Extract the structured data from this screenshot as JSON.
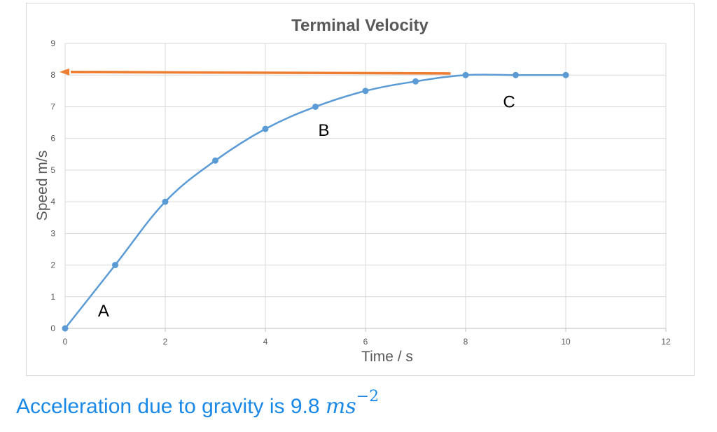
{
  "chart_data": {
    "type": "scatter",
    "title": "Terminal Velocity",
    "xlabel": "Time / s",
    "ylabel": "Speed m/s",
    "xlim": [
      0,
      12
    ],
    "ylim": [
      0,
      9
    ],
    "xticks": [
      "0",
      "2",
      "4",
      "6",
      "8",
      "10",
      "12"
    ],
    "yticks": [
      "0",
      "1",
      "2",
      "3",
      "4",
      "5",
      "6",
      "7",
      "8",
      "9"
    ],
    "grid": true,
    "series": [
      {
        "color": "#5b9bd5",
        "x": [
          0,
          1,
          2,
          3,
          4,
          5,
          6,
          7,
          8,
          9,
          10
        ],
        "y": [
          0,
          2,
          4,
          5.3,
          6.3,
          7,
          7.5,
          7.8,
          8,
          8,
          8
        ]
      }
    ],
    "annotations": [
      {
        "text": "A",
        "x": 0.6,
        "y": 0.6
      },
      {
        "text": "B",
        "x": 5.0,
        "y": 6.3
      },
      {
        "text": "C",
        "x": 8.7,
        "y": 7.2
      }
    ],
    "arrow": {
      "color": "#ed7d31",
      "from": [
        7.7,
        8.05
      ],
      "to": [
        0,
        8.1
      ]
    }
  },
  "caption": {
    "text": "Acceleration due to gravity is 9.8 ",
    "unit": "ms",
    "exponent": "−2",
    "color": "#1a88e6"
  }
}
